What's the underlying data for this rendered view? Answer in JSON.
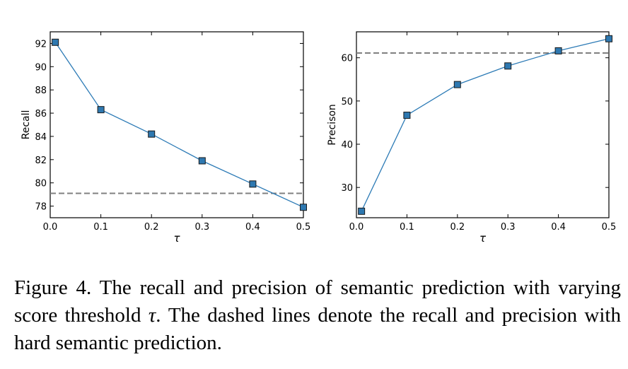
{
  "chart_data": [
    {
      "type": "line",
      "title": "",
      "xlabel": "τ",
      "ylabel": "Recall",
      "xlim": [
        0.0,
        0.5
      ],
      "ylim": [
        77.0,
        93.0
      ],
      "xticks": [
        0.0,
        0.1,
        0.2,
        0.3,
        0.4,
        0.5
      ],
      "xtick_labels": [
        "0.0",
        "0.1",
        "0.2",
        "0.3",
        "0.4",
        "0.5"
      ],
      "yticks": [
        78,
        80,
        82,
        84,
        86,
        88,
        90,
        92
      ],
      "ytick_labels": [
        "78",
        "80",
        "82",
        "84",
        "86",
        "88",
        "90",
        "92"
      ],
      "x": [
        0.01,
        0.1,
        0.2,
        0.3,
        0.4,
        0.5
      ],
      "y": [
        92.1,
        86.3,
        84.2,
        81.9,
        79.9,
        77.9
      ],
      "reference_line": 79.1,
      "grid": false,
      "line_color": "#2d7bb6",
      "marker_color": "#2e78b0",
      "reference_color": "#808080"
    },
    {
      "type": "line",
      "title": "",
      "xlabel": "τ",
      "ylabel": "Precison",
      "xlim": [
        0.0,
        0.5
      ],
      "ylim": [
        23.0,
        66.0
      ],
      "xticks": [
        0.0,
        0.1,
        0.2,
        0.3,
        0.4,
        0.5
      ],
      "xtick_labels": [
        "0.0",
        "0.1",
        "0.2",
        "0.3",
        "0.4",
        "0.5"
      ],
      "yticks": [
        30,
        40,
        50,
        60
      ],
      "ytick_labels": [
        "30",
        "40",
        "50",
        "60"
      ],
      "x": [
        0.01,
        0.1,
        0.2,
        0.3,
        0.4,
        0.5
      ],
      "y": [
        24.5,
        46.7,
        53.8,
        58.1,
        61.6,
        64.4
      ],
      "reference_line": 61.1,
      "grid": false,
      "line_color": "#2d7bb6",
      "marker_color": "#2e78b0",
      "reference_color": "#808080"
    }
  ],
  "caption": {
    "prefix": "Figure 4.  The recall and precision of semantic prediction with varying score threshold ",
    "symbol": "τ",
    "suffix": ". The dashed lines denote the recall and precision with hard semantic prediction."
  }
}
